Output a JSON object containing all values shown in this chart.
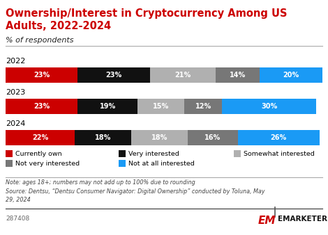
{
  "title": "Ownership/Interest in Cryptocurrency Among US\nAdults, 2022-2024",
  "subtitle": "% of respondents",
  "years": [
    "2022",
    "2023",
    "2024"
  ],
  "categories": [
    "Currently own",
    "Very interested",
    "Somewhat interested",
    "Not very interested",
    "Not at all interested"
  ],
  "colors": [
    "#cc0000",
    "#111111",
    "#b0b0b0",
    "#777777",
    "#1a9af5"
  ],
  "data": {
    "2022": [
      23,
      23,
      21,
      14,
      20
    ],
    "2023": [
      23,
      19,
      15,
      12,
      30
    ],
    "2024": [
      22,
      18,
      18,
      16,
      26
    ]
  },
  "note_line1": "Note: ages 18+; numbers may not add up to 100% due to rounding",
  "note_line2": "Source: Dentsu, “Dentsu Consumer Navigator: Digital Ownership” conducted by Toluna, May",
  "note_line3": "29, 2024",
  "id": "287408",
  "title_color": "#cc0000",
  "background_color": "#ffffff"
}
